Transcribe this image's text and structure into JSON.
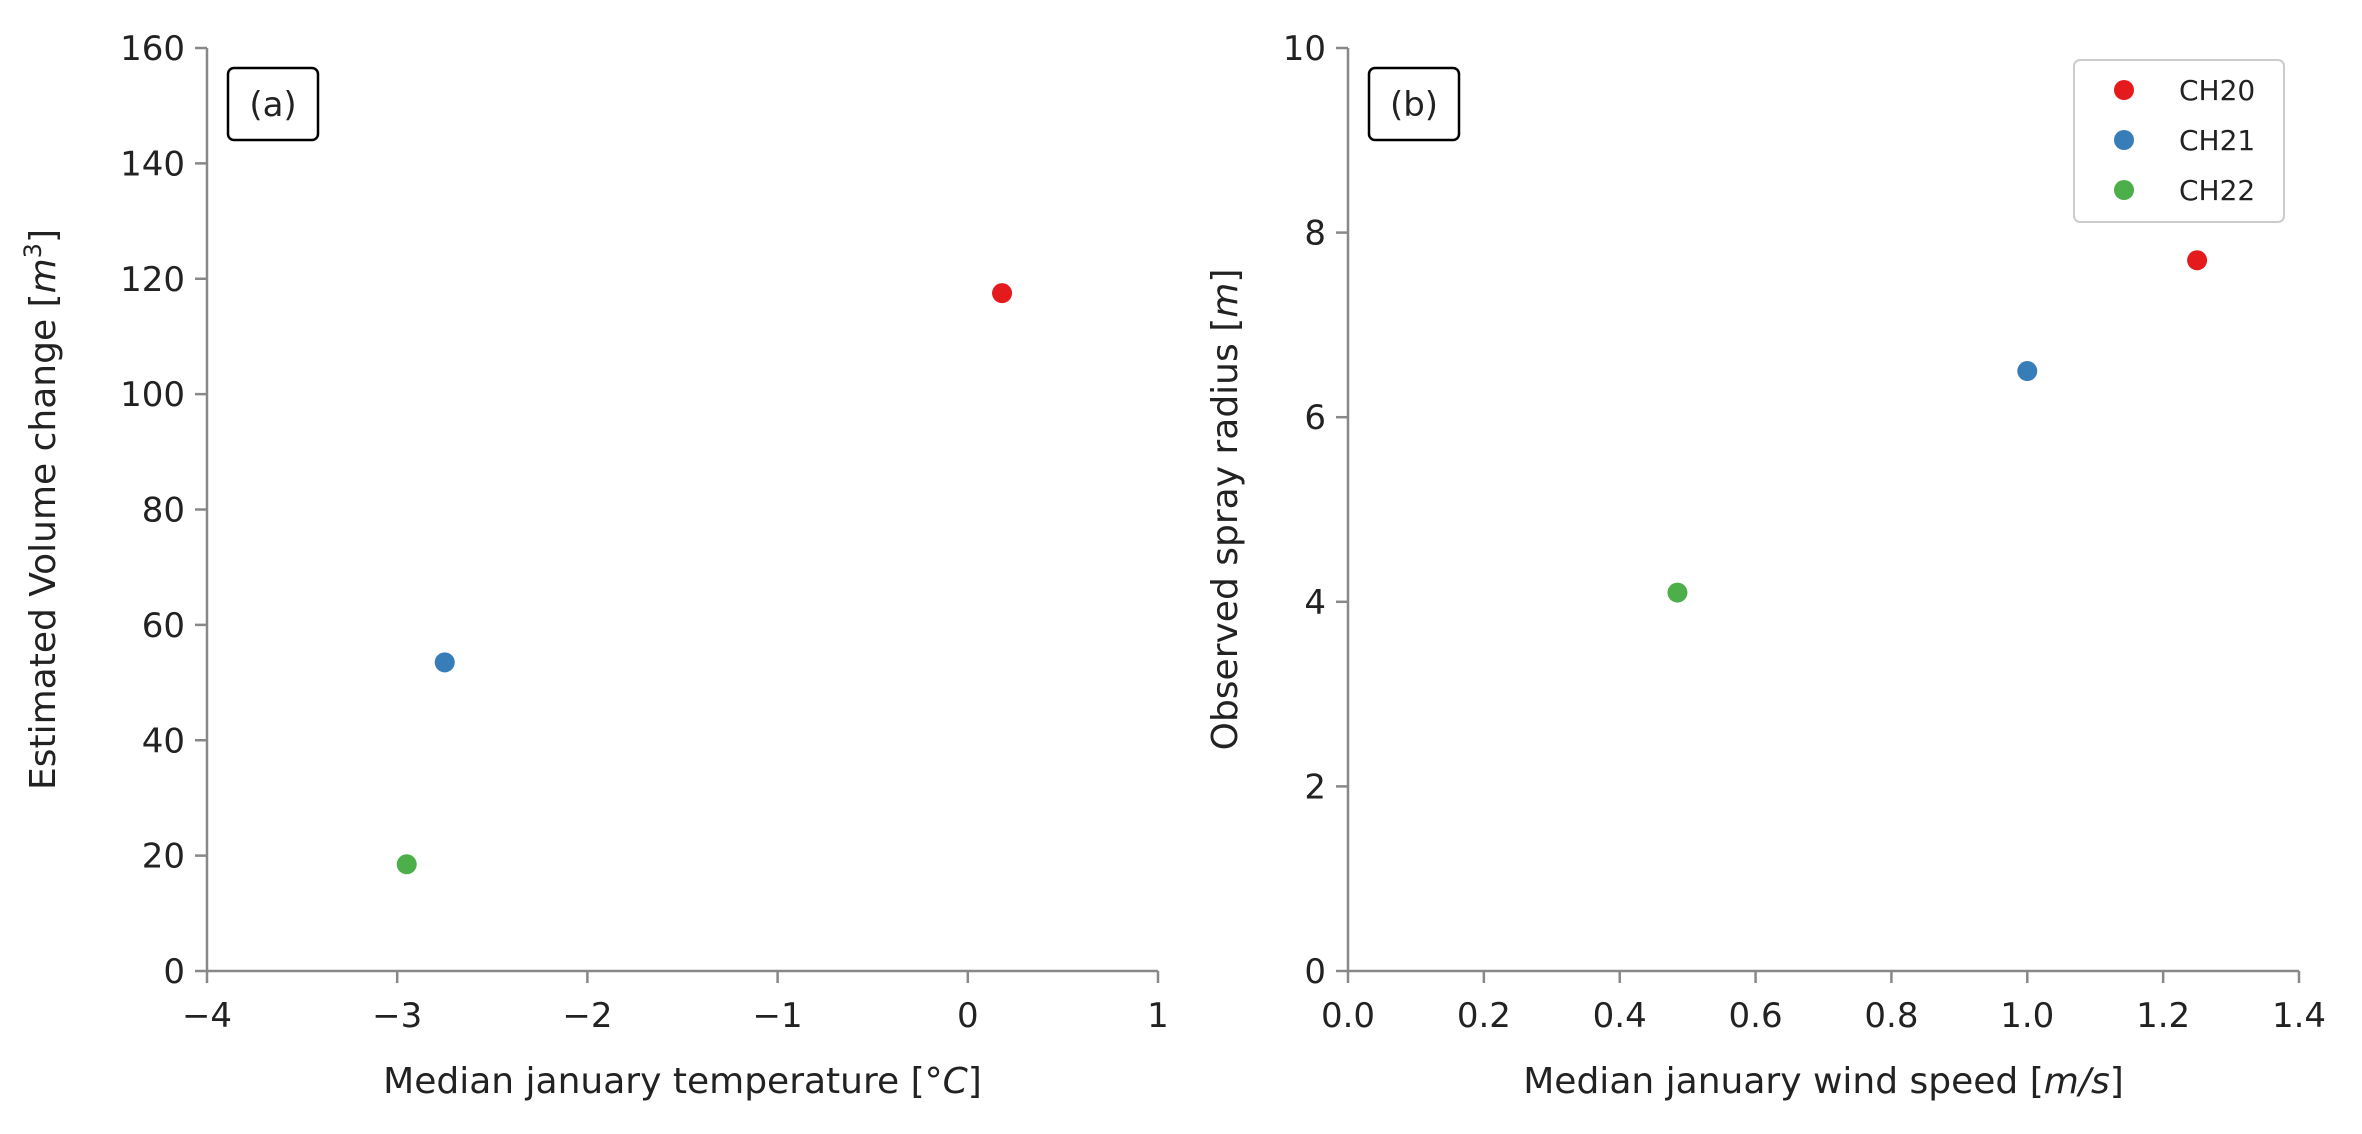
{
  "chart_data": [
    {
      "type": "scatter",
      "panel_label": "(a)",
      "xlabel_parts": [
        "Median january temperature [",
        "°",
        "C",
        "]"
      ],
      "ylabel_parts": [
        "Estimated Volume change [",
        "m",
        "3",
        "]"
      ],
      "xlim": [
        -4,
        1
      ],
      "ylim": [
        0,
        160
      ],
      "xticks": [
        -4,
        -3,
        -2,
        -1,
        0,
        1
      ],
      "xtick_labels": [
        "−4",
        "−3",
        "−2",
        "−1",
        "0",
        "1"
      ],
      "yticks": [
        0,
        20,
        40,
        60,
        80,
        100,
        120,
        140,
        160
      ],
      "ytick_labels": [
        "0",
        "20",
        "40",
        "60",
        "80",
        "100",
        "120",
        "140",
        "160"
      ],
      "grid": false,
      "series": [
        {
          "name": "CH20",
          "color": "#e41a1c",
          "x": [
            0.18
          ],
          "y": [
            117.5
          ]
        },
        {
          "name": "CH21",
          "color": "#377eb8",
          "x": [
            -2.75
          ],
          "y": [
            53.5
          ]
        },
        {
          "name": "CH22",
          "color": "#4daf4a",
          "x": [
            -2.95
          ],
          "y": [
            18.5
          ]
        }
      ]
    },
    {
      "type": "scatter",
      "panel_label": "(b)",
      "xlabel_parts": [
        "Median january wind speed [",
        "m/s",
        "]"
      ],
      "ylabel_parts": [
        "Observed spray radius [",
        "m",
        "]"
      ],
      "xlim": [
        0.0,
        1.4
      ],
      "ylim": [
        0,
        10
      ],
      "xticks": [
        0.0,
        0.2,
        0.4,
        0.6,
        0.8,
        1.0,
        1.2,
        1.4
      ],
      "xtick_labels": [
        "0.0",
        "0.2",
        "0.4",
        "0.6",
        "0.8",
        "1.0",
        "1.2",
        "1.4"
      ],
      "yticks": [
        0,
        2,
        4,
        6,
        8,
        10
      ],
      "ytick_labels": [
        "0",
        "2",
        "4",
        "6",
        "8",
        "10"
      ],
      "grid": false,
      "legend": {
        "position": "top-right",
        "entries": [
          "CH20",
          "CH21",
          "CH22"
        ]
      },
      "series": [
        {
          "name": "CH20",
          "color": "#e41a1c",
          "x": [
            1.25
          ],
          "y": [
            7.7
          ]
        },
        {
          "name": "CH21",
          "color": "#377eb8",
          "x": [
            1.0
          ],
          "y": [
            6.5
          ]
        },
        {
          "name": "CH22",
          "color": "#4daf4a",
          "x": [
            0.485
          ],
          "y": [
            4.1
          ]
        }
      ]
    }
  ]
}
